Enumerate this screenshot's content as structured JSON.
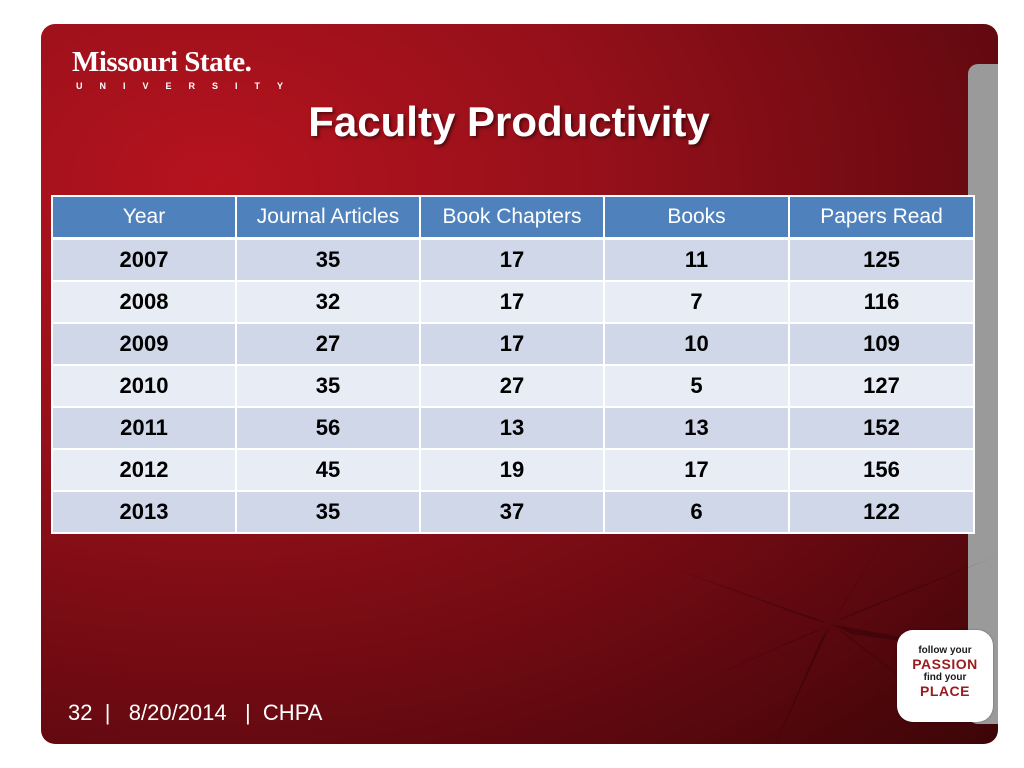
{
  "logo": {
    "name": "Missouri State.",
    "subtitle": "UNIVERSITY"
  },
  "title": "Faculty Productivity",
  "table": {
    "headers": [
      "Year",
      "Journal Articles",
      "Book Chapters",
      "Books",
      "Papers Read"
    ],
    "rows": [
      [
        "2007",
        "35",
        "17",
        "11",
        "125"
      ],
      [
        "2008",
        "32",
        "17",
        "7",
        "116"
      ],
      [
        "2009",
        "27",
        "17",
        "10",
        "109"
      ],
      [
        "2010",
        "35",
        "27",
        "5",
        "127"
      ],
      [
        "2011",
        "56",
        "13",
        "13",
        "152"
      ],
      [
        "2012",
        "45",
        "19",
        "17",
        "156"
      ],
      [
        "2013",
        "35",
        "37",
        "6",
        "122"
      ]
    ]
  },
  "footer": {
    "page": "32",
    "date": "8/20/2014",
    "org": "CHPA"
  },
  "badge": {
    "line1": "follow your",
    "line2": "PASSION",
    "line3": "find your",
    "line4": "PLACE"
  },
  "colors": {
    "background": "#95101a",
    "header": "#4f81bd",
    "row_odd": "#cfd7e8",
    "row_even": "#e8ecf4"
  }
}
